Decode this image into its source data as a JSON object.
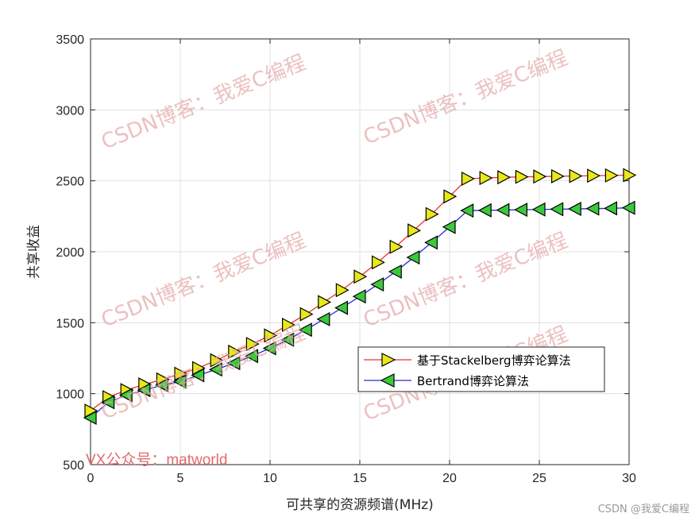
{
  "chart_data": {
    "type": "line",
    "xlabel": "可共享的资源频谱(MHz)",
    "ylabel": "共享收益",
    "xlim": [
      0,
      30
    ],
    "ylim": [
      500,
      3500
    ],
    "xticks": [
      0,
      5,
      10,
      15,
      20,
      25,
      30
    ],
    "yticks": [
      500,
      1000,
      1500,
      2000,
      2500,
      3000,
      3500
    ],
    "grid": true,
    "legend_position": "center-right",
    "x": [
      0,
      1,
      2,
      3,
      4,
      5,
      6,
      7,
      8,
      9,
      10,
      11,
      12,
      13,
      14,
      15,
      16,
      17,
      18,
      19,
      20,
      21,
      22,
      23,
      24,
      25,
      26,
      27,
      28,
      29,
      30
    ],
    "series": [
      {
        "name": "基于Stackelberg博弈论算法",
        "color": "#e8332c",
        "marker": "triangle-right",
        "marker_fill": "#e8e81a",
        "values": [
          880,
          975,
          1025,
          1065,
          1100,
          1140,
          1180,
          1235,
          1295,
          1350,
          1410,
          1485,
          1560,
          1645,
          1730,
          1825,
          1925,
          2035,
          2150,
          2265,
          2390,
          2515,
          2520,
          2525,
          2528,
          2530,
          2532,
          2534,
          2536,
          2538,
          2540
        ]
      },
      {
        "name": "Bertrand博弈论算法",
        "color": "#2a2ad6",
        "marker": "triangle-left",
        "marker_fill": "#3cc83c",
        "values": [
          830,
          940,
          990,
          1025,
          1060,
          1085,
          1130,
          1170,
          1215,
          1265,
          1320,
          1380,
          1450,
          1525,
          1605,
          1685,
          1770,
          1860,
          1960,
          2065,
          2175,
          2290,
          2292,
          2294,
          2296,
          2298,
          2300,
          2302,
          2304,
          2306,
          2310
        ]
      }
    ]
  },
  "watermarks": {
    "blog": "CSDN博客：我爱C编程",
    "tag": "VX公众号：matworld",
    "credit": "CSDN @我爱C编程"
  }
}
